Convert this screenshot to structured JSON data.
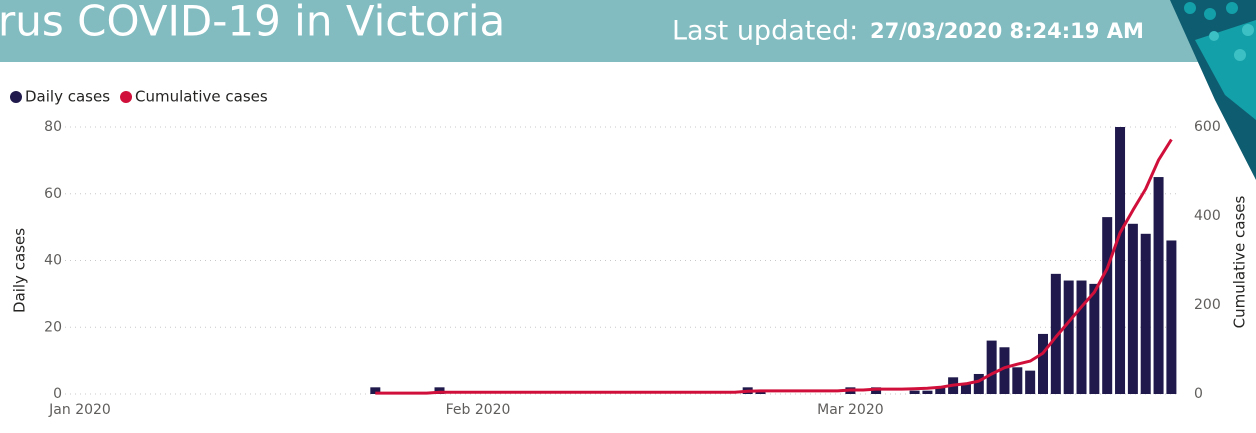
{
  "header": {
    "title": "rus COVID-19 in Victoria",
    "updated_label": "Last updated:",
    "updated_value": "27/03/2020 8:24:19 AM"
  },
  "chart_data": {
    "type": "bar-line",
    "categories": [
      "Jan 2020",
      null,
      null,
      null,
      null,
      null,
      null,
      null,
      null,
      null,
      null,
      null,
      null,
      null,
      null,
      null,
      null,
      null,
      null,
      null,
      null,
      null,
      null,
      null,
      null,
      null,
      null,
      null,
      null,
      null,
      null,
      "Feb 2020",
      null,
      null,
      null,
      null,
      null,
      null,
      null,
      null,
      null,
      null,
      null,
      null,
      null,
      null,
      null,
      null,
      null,
      null,
      null,
      null,
      null,
      null,
      null,
      null,
      null,
      null,
      null,
      null,
      "Mar 2020",
      null,
      null,
      null,
      null,
      null,
      null,
      null,
      null,
      null,
      null,
      null,
      null,
      null,
      null,
      null,
      null,
      null,
      null,
      null,
      null,
      null,
      null,
      null,
      null,
      null
    ],
    "series": [
      {
        "name": "Daily cases",
        "color": "#1f1a4b",
        "type": "bar",
        "values": [
          0,
          0,
          0,
          0,
          0,
          0,
          0,
          0,
          0,
          0,
          0,
          0,
          0,
          0,
          0,
          0,
          0,
          0,
          0,
          0,
          0,
          0,
          0,
          2,
          0,
          0,
          0,
          0,
          2,
          0,
          0,
          0,
          0,
          0,
          0,
          0,
          0,
          0,
          0,
          0,
          0,
          0,
          0,
          0,
          0,
          0,
          0,
          0,
          0,
          0,
          0,
          0,
          2,
          1,
          0,
          0,
          0,
          0,
          0,
          0,
          2,
          0,
          2,
          0,
          0,
          1,
          1,
          2,
          5,
          3,
          6,
          16,
          14,
          8,
          7,
          18,
          36,
          34,
          34,
          33,
          53,
          80,
          51,
          48,
          65,
          46
        ]
      },
      {
        "name": "Cumulative cases",
        "color": "#d0103a",
        "type": "line",
        "axis": "y2",
        "values": [
          null,
          null,
          null,
          null,
          null,
          null,
          null,
          null,
          null,
          null,
          null,
          null,
          null,
          null,
          null,
          null,
          null,
          null,
          null,
          null,
          null,
          null,
          null,
          2,
          2,
          2,
          2,
          2,
          4,
          4,
          4,
          4,
          4,
          4,
          4,
          4,
          4,
          4,
          4,
          4,
          4,
          4,
          4,
          4,
          4,
          4,
          4,
          4,
          4,
          4,
          4,
          4,
          6,
          7,
          7,
          7,
          7,
          7,
          7,
          7,
          9,
          9,
          11,
          11,
          11,
          12,
          13,
          15,
          20,
          23,
          29,
          45,
          59,
          67,
          74,
          92,
          128,
          162,
          196,
          229,
          282,
          362,
          413,
          461,
          526,
          572
        ]
      }
    ],
    "y_label": "Daily cases",
    "y2_label": "Cumulative cases",
    "ylim": [
      0,
      80
    ],
    "yticks": [
      0,
      20,
      40,
      60,
      80
    ],
    "y2lim": [
      0,
      600
    ],
    "y2ticks": [
      0,
      200,
      400,
      600
    ],
    "grid": true,
    "legend": "top-left"
  }
}
